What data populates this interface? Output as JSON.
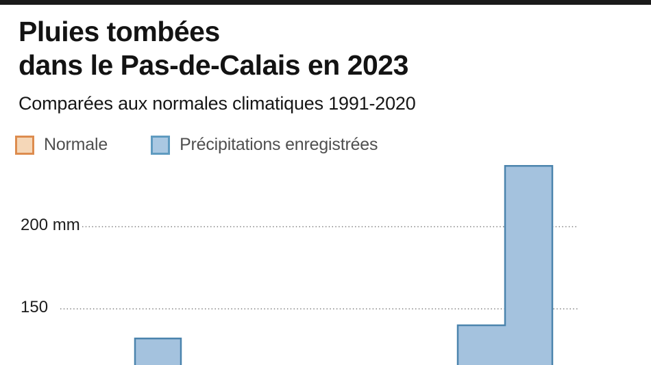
{
  "frame": {
    "top_bar_color": "#1a1a1a"
  },
  "header": {
    "title_line1": "Pluies tombées",
    "title_line2": "dans le Pas-de-Calais en 2023",
    "subtitle": "Comparées aux normales climatiques 1991-2020"
  },
  "legend": {
    "items": [
      {
        "label": "Normale",
        "fill": "#f5d7b8",
        "border": "#dd8c4e"
      },
      {
        "label": "Précipitations enregistrées",
        "fill": "#aac8e2",
        "border": "#5f9bc0"
      }
    ]
  },
  "chart_data": {
    "type": "bar",
    "title": "Pluies tombées dans le Pas-de-Calais en 2023",
    "subtitle": "Comparées aux normales climatiques 1991-2020",
    "unit": "mm",
    "series_names": [
      "Normale",
      "Précipitations enregistrées"
    ],
    "colors": {
      "recorded_fill": "#a4c2de",
      "recorded_border": "#4b84ad"
    },
    "y_axis": {
      "visible_ticks": [
        {
          "label": "200 mm",
          "value": 200
        },
        {
          "label": "150",
          "value": 150
        }
      ],
      "gridline_style": "dotted",
      "visible_value_range": [
        115,
        245
      ]
    },
    "bars_visible": [
      {
        "series": "Précipitations enregistrées",
        "value_mm": 132
      },
      {
        "series": "Précipitations enregistrées",
        "value_mm": 140
      },
      {
        "series": "Précipitations enregistrées",
        "value_mm": 237
      }
    ],
    "note": "chart is cropped at the bottom of the screenshot; category labels and Normale bars are not visible"
  }
}
